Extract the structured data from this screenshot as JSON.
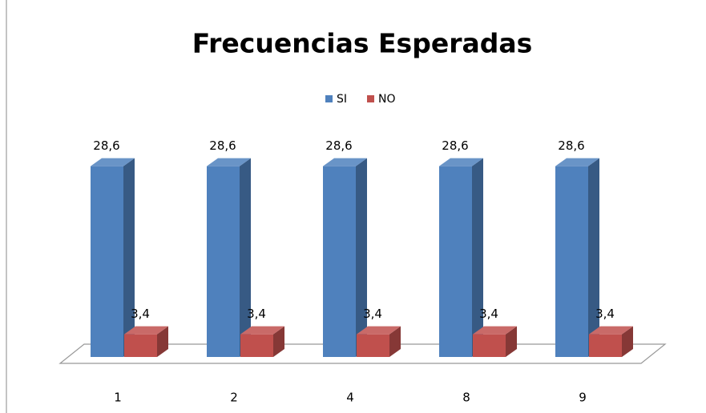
{
  "chart_data": {
    "type": "bar3d",
    "title": "Frecuencias Esperadas",
    "categories": [
      "1",
      "2",
      "4",
      "8",
      "9"
    ],
    "series": [
      {
        "name": "SI",
        "color": "#4f81bd",
        "values": [
          28.6,
          28.6,
          28.6,
          28.6,
          28.6
        ],
        "value_labels": [
          "28,6",
          "28,6",
          "28,6",
          "28,6",
          "28,6"
        ]
      },
      {
        "name": "NO",
        "color": "#c0504d",
        "values": [
          3.4,
          3.4,
          3.4,
          3.4,
          3.4
        ],
        "value_labels": [
          "3,4",
          "3,4",
          "3,4",
          "3,4",
          "3,4"
        ]
      }
    ],
    "ylim": [
      0,
      30
    ],
    "legend": "top"
  }
}
